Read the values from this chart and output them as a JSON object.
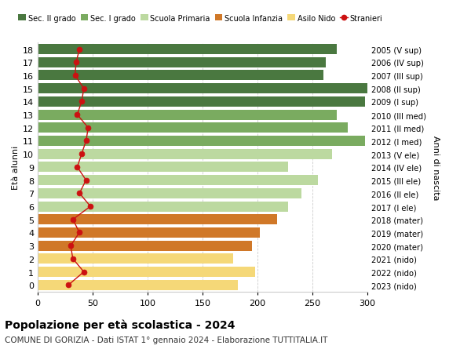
{
  "ages": [
    18,
    17,
    16,
    15,
    14,
    13,
    12,
    11,
    10,
    9,
    8,
    7,
    6,
    5,
    4,
    3,
    2,
    1,
    0
  ],
  "years": [
    "2005 (V sup)",
    "2006 (IV sup)",
    "2007 (III sup)",
    "2008 (II sup)",
    "2009 (I sup)",
    "2010 (III med)",
    "2011 (II med)",
    "2012 (I med)",
    "2013 (V ele)",
    "2014 (IV ele)",
    "2015 (III ele)",
    "2016 (II ele)",
    "2017 (I ele)",
    "2018 (mater)",
    "2019 (mater)",
    "2020 (mater)",
    "2021 (nido)",
    "2022 (nido)",
    "2023 (nido)"
  ],
  "bar_values": [
    272,
    262,
    260,
    302,
    298,
    272,
    282,
    298,
    268,
    228,
    255,
    240,
    228,
    218,
    202,
    195,
    178,
    198,
    182
  ],
  "bar_colors": [
    "#4a7840",
    "#4a7840",
    "#4a7840",
    "#4a7840",
    "#4a7840",
    "#7aab60",
    "#7aab60",
    "#7aab60",
    "#bcd9a0",
    "#bcd9a0",
    "#bcd9a0",
    "#bcd9a0",
    "#bcd9a0",
    "#d07828",
    "#d07828",
    "#d07828",
    "#f5d878",
    "#f5d878",
    "#f5d878"
  ],
  "stranieri_values": [
    38,
    35,
    34,
    42,
    40,
    36,
    46,
    44,
    40,
    36,
    44,
    38,
    48,
    32,
    38,
    30,
    32,
    42,
    28
  ],
  "stranieri_color": "#cc1111",
  "title": "Popolazione per età scolastica - 2024",
  "subtitle": "COMUNE DI GORIZIA - Dati ISTAT 1° gennaio 2024 - Elaborazione TUTTITALIA.IT",
  "ylabel_left": "Età alunni",
  "ylabel_right": "Anni di nascita",
  "xlim": [
    0,
    300
  ],
  "xticks": [
    0,
    50,
    100,
    150,
    200,
    250,
    300
  ],
  "legend_labels": [
    "Sec. II grado",
    "Sec. I grado",
    "Scuola Primaria",
    "Scuola Infanzia",
    "Asilo Nido",
    "Stranieri"
  ],
  "legend_colors": [
    "#4a7840",
    "#7aab60",
    "#bcd9a0",
    "#d07828",
    "#f5d878",
    "#cc1111"
  ],
  "background_color": "#ffffff",
  "grid_color": "#cccccc",
  "bar_height": 0.78
}
